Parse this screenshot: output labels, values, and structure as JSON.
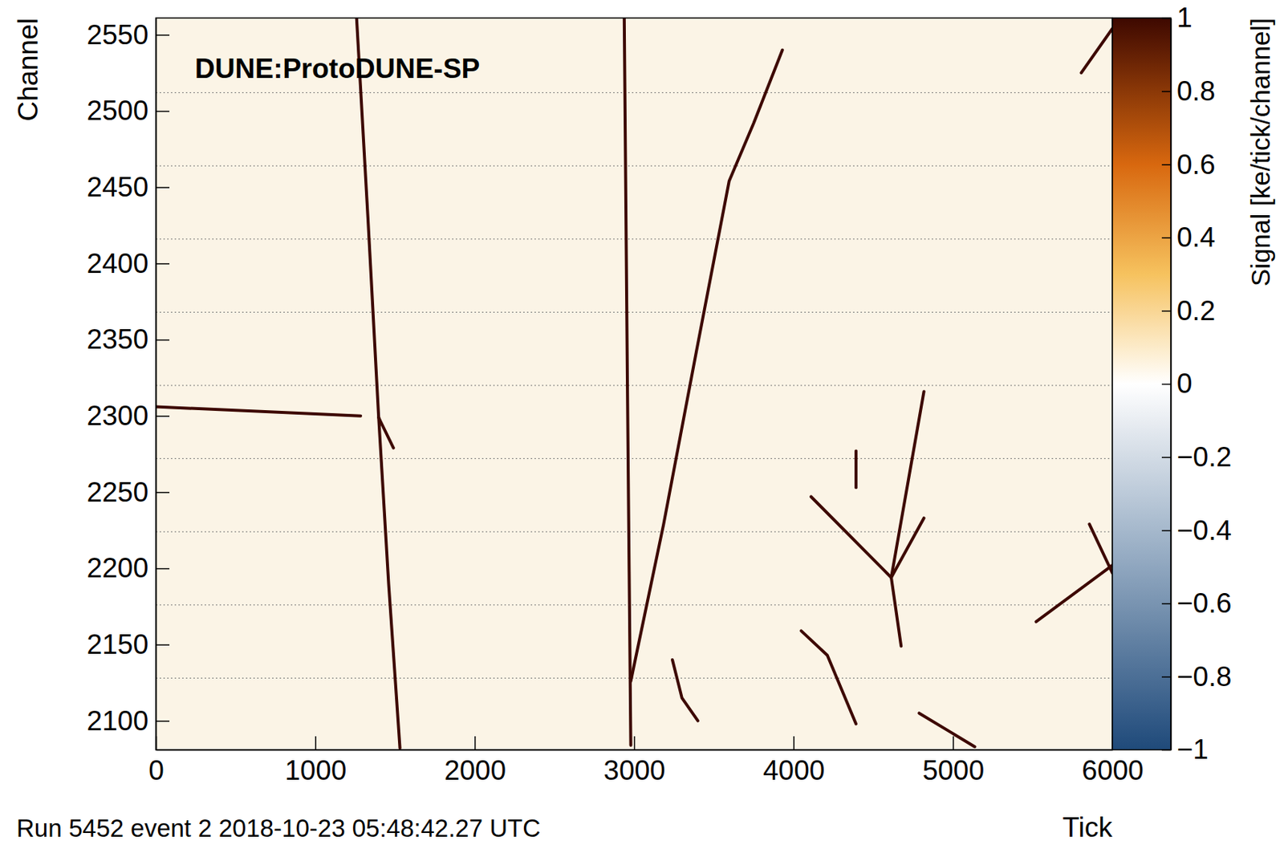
{
  "chart_data": {
    "type": "heatmap",
    "x_label": "Tick",
    "y_label": "Channel",
    "annotations": [
      "DUNE:ProtoDUNE-SP",
      "Run 5452 event 2 2018-10-23 05:48:42.27 UTC"
    ],
    "xlim": [
      0,
      6000
    ],
    "xticks": [
      0,
      1000,
      2000,
      3000,
      4000,
      5000,
      6000
    ],
    "ylim": [
      2081,
      2561
    ],
    "yticks": [
      2100,
      2150,
      2200,
      2250,
      2300,
      2350,
      2400,
      2450,
      2500,
      2550
    ],
    "boundaries": [
      2128,
      2176,
      2224,
      2272,
      2320,
      2368,
      2416,
      2464,
      2512
    ],
    "color": "#3d0800",
    "colorbar": {
      "label": "Signal [ke/tick/channel]",
      "range": [
        -1,
        1
      ],
      "ticks": [
        {
          "value": -1,
          "label": "−1"
        },
        {
          "value": -0.8,
          "label": "−0.8"
        },
        {
          "value": -0.6,
          "label": "−0.6"
        },
        {
          "value": -0.4,
          "label": "−0.4"
        },
        {
          "value": -0.2,
          "label": "−0.2"
        },
        0,
        0.2,
        0.4,
        0.6,
        0.8,
        1
      ]
    },
    "series": [
      {
        "x": [
          1259,
          1330,
          1397,
          1460,
          1531
        ],
        "values": [
          2561,
          2430,
          2300,
          2190,
          2082
        ]
      },
      {
        "x": [
          0,
          1284
        ],
        "values": [
          2306,
          2300
        ]
      },
      {
        "x": [
          1397,
          1490
        ],
        "values": [
          2299,
          2279
        ]
      },
      {
        "x": [
          2938,
          2958,
          2979
        ],
        "values": [
          2561,
          2320,
          2084
        ]
      },
      {
        "x": [
          2979,
          3185,
          3390,
          3596,
          3750,
          3930
        ],
        "values": [
          2126,
          2229,
          2342,
          2454,
          2492,
          2540
        ]
      },
      {
        "x": [
          4110,
          4613
        ],
        "values": [
          2247,
          2194
        ]
      },
      {
        "x": [
          4613,
          4818
        ],
        "values": [
          2194,
          2316
        ]
      },
      {
        "x": [
          4613,
          4675
        ],
        "values": [
          2194,
          2149
        ]
      },
      {
        "x": [
          4613,
          4818
        ],
        "values": [
          2194,
          2233
        ]
      },
      {
        "x": [
          4392,
          4392
        ],
        "values": [
          2277,
          2253
        ]
      },
      {
        "x": [
          4048,
          4212,
          4392
        ],
        "values": [
          2159,
          2143,
          2098
        ]
      },
      {
        "x": [
          4788,
          5137
        ],
        "values": [
          2105,
          2083
        ]
      },
      {
        "x": [
          3240,
          3300,
          3400
        ],
        "values": [
          2140,
          2115,
          2100
        ]
      },
      {
        "x": [
          5522,
          6000
        ],
        "values": [
          2165,
          2202
        ]
      },
      {
        "x": [
          5856,
          6000
        ],
        "values": [
          2229,
          2197
        ]
      },
      {
        "x": [
          5805,
          6000
        ],
        "values": [
          2525,
          2554
        ]
      }
    ]
  }
}
